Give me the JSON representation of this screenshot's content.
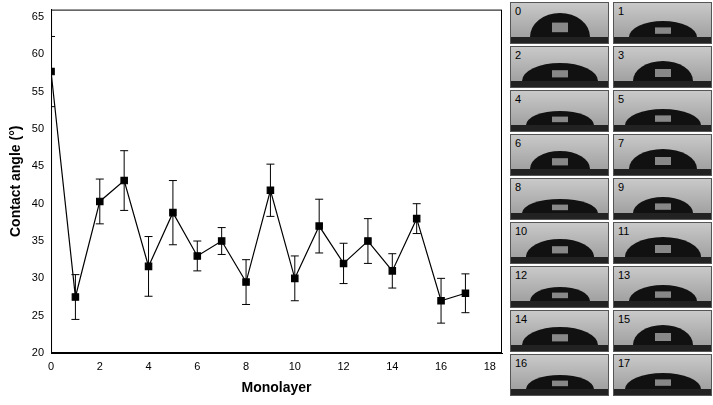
{
  "chart_data": {
    "type": "line",
    "x_label": "Monolayer",
    "y_label": "Contact angle (°)",
    "x": [
      0,
      1,
      2,
      3,
      4,
      5,
      6,
      7,
      8,
      9,
      10,
      11,
      12,
      13,
      14,
      15,
      16,
      17
    ],
    "values": [
      57.7,
      27.5,
      40.3,
      43.1,
      31.6,
      38.8,
      33.0,
      35.0,
      29.5,
      41.8,
      30.0,
      37.0,
      32.0,
      35.0,
      31.0,
      38.0,
      27.0,
      28.0
    ],
    "errors": [
      4.7,
      3.0,
      3.0,
      4.0,
      4.0,
      4.3,
      2.0,
      1.8,
      3.0,
      3.5,
      3.0,
      3.6,
      2.7,
      3.0,
      2.3,
      2.0,
      3.0,
      2.6
    ],
    "color": "#000000",
    "marker": "square",
    "line_style": "solid",
    "xlim": [
      0,
      18.5
    ],
    "xticks": [
      0,
      2,
      4,
      6,
      8,
      10,
      12,
      14,
      16,
      18
    ],
    "ylim": [
      20,
      66
    ],
    "yticks": [
      20,
      25,
      30,
      35,
      40,
      45,
      50,
      55,
      60,
      65
    ],
    "grid": false,
    "image_labels": [
      0,
      1,
      2,
      3,
      4,
      5,
      6,
      7,
      8,
      9,
      10,
      11,
      12,
      13,
      14,
      15,
      16,
      17
    ]
  }
}
